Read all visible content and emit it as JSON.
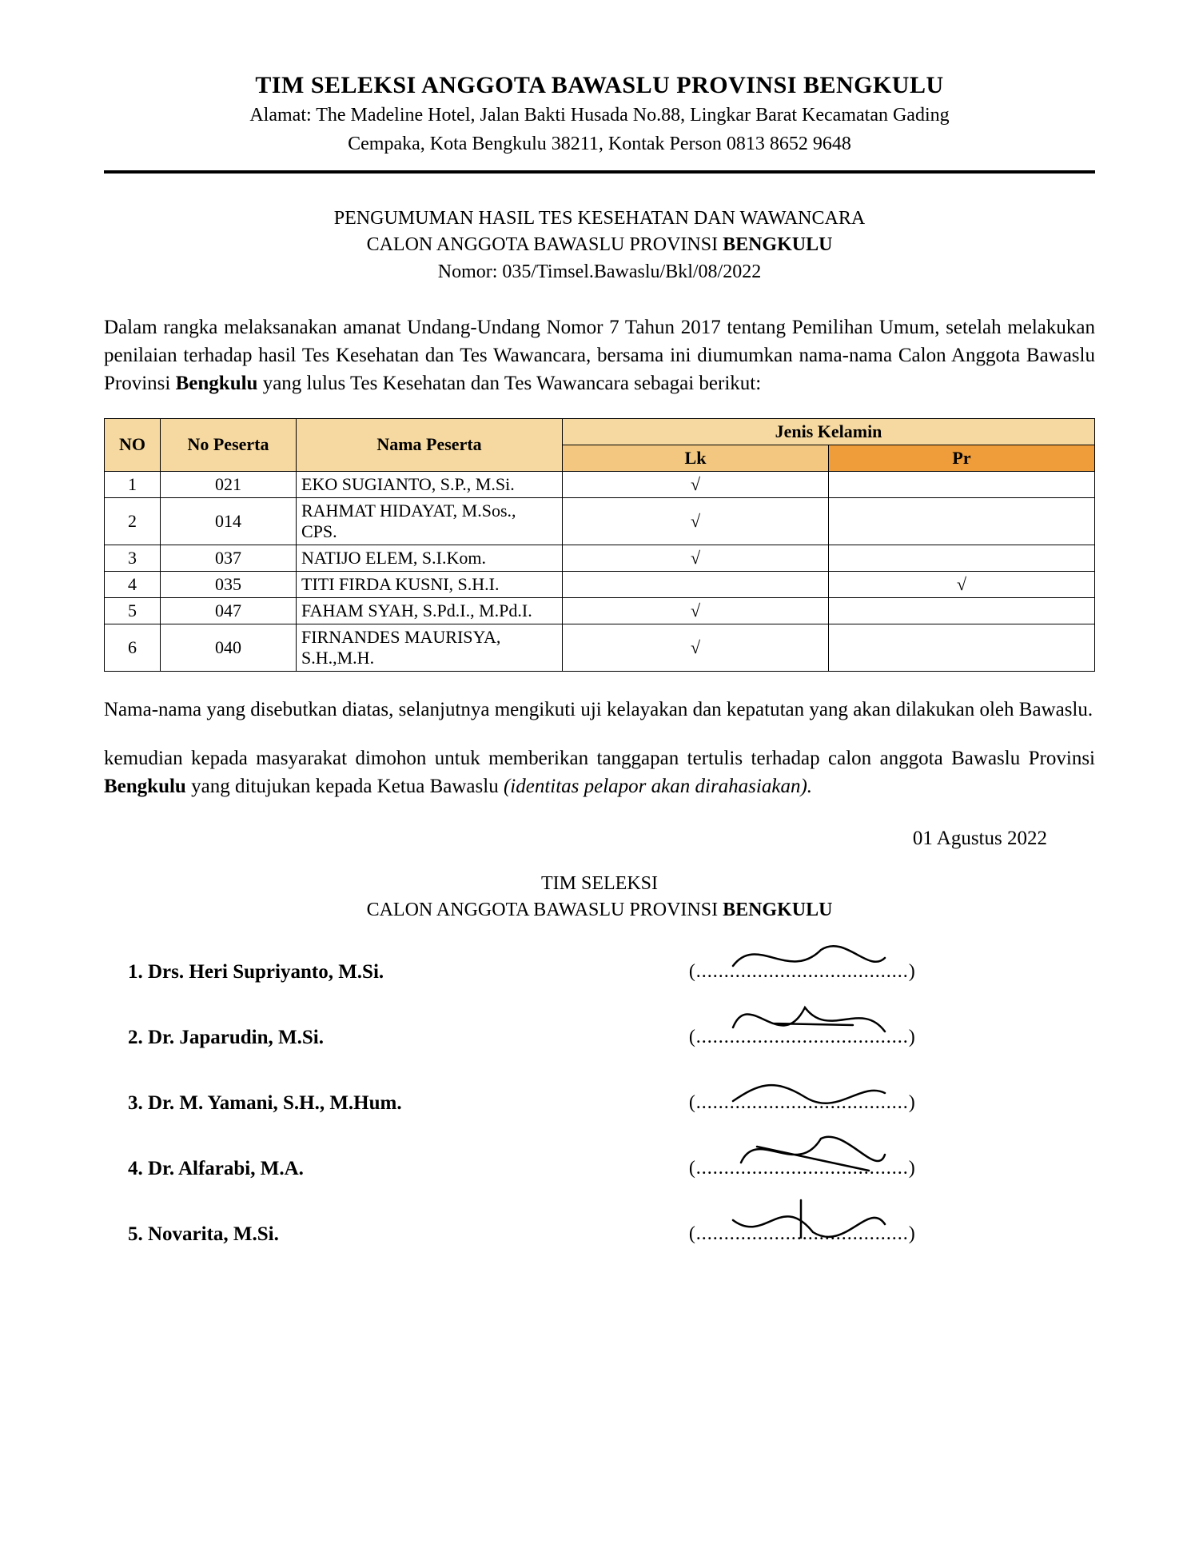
{
  "header": {
    "title": "TIM SELEKSI ANGGOTA BAWASLU PROVINSI BENGKULU",
    "address_line1": "Alamat: The Madeline Hotel, Jalan Bakti Husada No.88, Lingkar  Barat Kecamatan Gading",
    "address_line2": "Cempaka, Kota Bengkulu 38211, Kontak Person 0813 8652 9648"
  },
  "announcement": {
    "line1": "PENGUMUMAN HASIL TES KESEHATAN DAN WAWANCARA",
    "line2_pre": "CALON ANGGOTA BAWASLU PROVINSI ",
    "line2_bold": "BENGKULU",
    "number": "Nomor: 035/Timsel.Bawaslu/Bkl/08/2022"
  },
  "intro": {
    "t1": "Dalam rangka melaksanakan amanat Undang-Undang Nomor 7 Tahun 2017  tentang Pemilihan Umum, setelah melakukan penilaian terhadap hasil Tes Kesehatan dan Tes Wawancara, bersama ini diumumkan nama-nama Calon Anggota Bawaslu Provinsi ",
    "bold": "Bengkulu",
    "t2": " yang lulus Tes Kesehatan dan Tes Wawancara sebagai berikut:"
  },
  "table": {
    "columns": {
      "no": "NO",
      "no_peserta": "No Peserta",
      "nama": "Nama Peserta",
      "jk": "Jenis Kelamin",
      "lk": "Lk",
      "pr": "Pr"
    },
    "header_colors": {
      "main_bg": "#f6d9a0",
      "lk_bg": "#f3c77f",
      "pr_bg": "#ef9c3a",
      "text": "#000000",
      "border": "#000000"
    },
    "check_mark": "√",
    "rows": [
      {
        "no": "1",
        "np": "021",
        "name": "EKO SUGIANTO, S.P., M.Si.",
        "lk": true,
        "pr": false
      },
      {
        "no": "2",
        "np": "014",
        "name": "RAHMAT HIDAYAT, M.Sos., CPS.",
        "lk": true,
        "pr": false
      },
      {
        "no": "3",
        "np": "037",
        "name": "NATIJO ELEM, S.I.Kom.",
        "lk": true,
        "pr": false
      },
      {
        "no": "4",
        "np": "035",
        "name": "TITI FIRDA KUSNI, S.H.I.",
        "lk": false,
        "pr": true
      },
      {
        "no": "5",
        "np": "047",
        "name": "FAHAM SYAH, S.Pd.I., M.Pd.I.",
        "lk": true,
        "pr": false
      },
      {
        "no": "6",
        "np": "040",
        "name": "FIRNANDES MAURISYA, S.H.,M.H.",
        "lk": true,
        "pr": false
      }
    ]
  },
  "after_table": {
    "p1": "Nama-nama yang disebutkan diatas, selanjutnya mengikuti uji kelayakan dan kepatutan yang akan dilakukan oleh Bawaslu.",
    "p2a": "kemudian kepada masyarakat dimohon untuk memberikan tanggapan tertulis terhadap calon anggota Bawaslu Provinsi ",
    "p2bold": "Bengkulu",
    "p2b": " yang ditujukan kepada Ketua Bawaslu ",
    "p2italic": "(identitas pelapor akan dirahasiakan)."
  },
  "date": "01 Agustus 2022",
  "sig_heading": {
    "l1": "TIM SELEKSI",
    "l2_pre": "CALON ANGGOTA BAWASLU PROVINSI ",
    "l2_bold": "BENGKULU"
  },
  "signers": [
    {
      "label": "1. Drs. Heri Supriyanto, M.Si."
    },
    {
      "label": "2. Dr. Japarudin, M.Si."
    },
    {
      "label": "3. Dr. M. Yamani, S.H., M.Hum."
    },
    {
      "label": "4. Dr. Alfarabi, M.A."
    },
    {
      "label": "5. Novarita, M.Si."
    }
  ],
  "sig_line_text": "(......................................)"
}
